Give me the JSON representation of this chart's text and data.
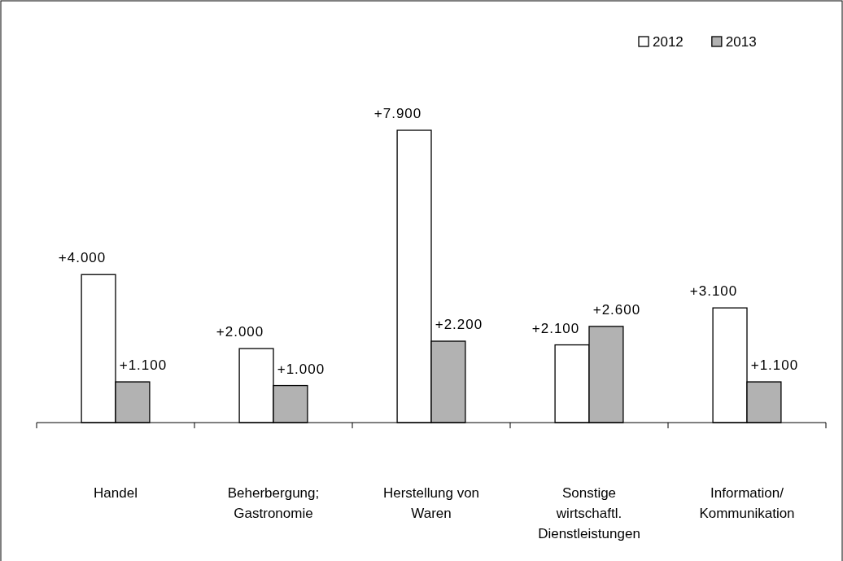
{
  "chart_data": {
    "type": "bar",
    "categories": [
      "Handel",
      "Beherbergung;\nGastronomie",
      "Herstellung von\nWaren",
      "Sonstige\nwirtschaftl.\nDienstleistungen",
      "Information/\nKommunikation"
    ],
    "series": [
      {
        "name": "2012",
        "color": "#ffffff",
        "values": [
          4000,
          2000,
          7900,
          2100,
          3100
        ],
        "value_labels": [
          "+4.000",
          "+2.000",
          "+7.900",
          "+2.100",
          "+3.100"
        ]
      },
      {
        "name": "2013",
        "color": "#b2b2b2",
        "values": [
          1100,
          1000,
          2200,
          2600,
          1100
        ],
        "value_labels": [
          "+1.100",
          "+1.000",
          "+2.200",
          "+2.600",
          "+1.100"
        ]
      }
    ],
    "legend": "top right"
  }
}
